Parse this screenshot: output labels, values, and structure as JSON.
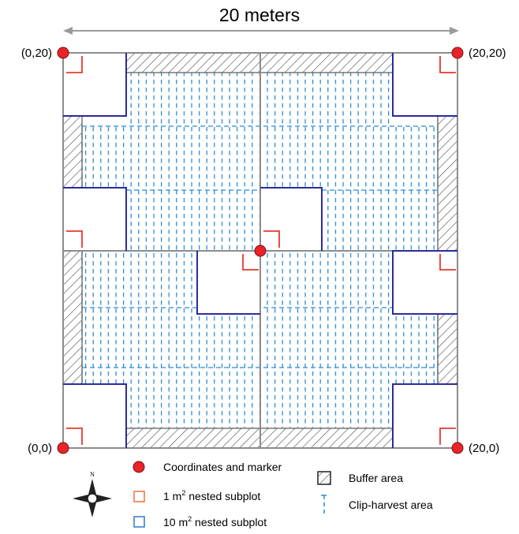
{
  "title": "20 meters",
  "corners": {
    "top_left": "(0,20)",
    "top_right": "(20,20)",
    "bottom_left": "(0,0)",
    "bottom_right": "(20,0)"
  },
  "compass": {
    "north_label": "N"
  },
  "legend": {
    "marker": "Coordinates and marker",
    "subplot_1m_prefix": "1 m",
    "subplot_1m_suffix": " nested subplot",
    "subplot_10m_prefix": "10 m",
    "subplot_10m_suffix": " nested subplot",
    "superscript": "2",
    "buffer": "Buffer area",
    "clip_harvest": "Clip-harvest area"
  },
  "colors": {
    "plot_outline": "#8c8c8c",
    "subplot_10m": "#2b2b9b",
    "subplot_1m": "#e53a2c",
    "clip_harvest": "#2b8ad6",
    "marker_fill": "#e8232a",
    "hatch": "#555555"
  }
}
